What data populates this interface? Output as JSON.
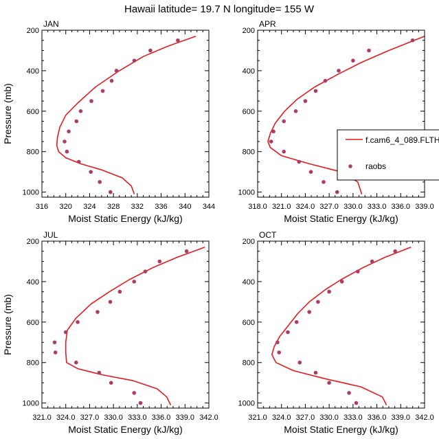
{
  "title": "Hawaii  latitude= 19.7 N longitude= 155 W",
  "colors": {
    "model": "#e8191b",
    "obs": "#b03a66"
  },
  "legend": {
    "model": "f.cam6_4_089.FLTH",
    "obs": "raobs",
    "placement": "right of APR panel"
  },
  "chart_data": [
    {
      "type": "line",
      "panel": "JAN",
      "title": "JAN",
      "xlabel": "Moist Static Energy (kJ/kg)",
      "ylabel": "Pressure (mb)",
      "xlim": [
        316,
        344
      ],
      "ylim": [
        1025,
        200
      ],
      "xticks": [
        "316",
        "320",
        "324",
        "328",
        "332",
        "336",
        "340",
        "344"
      ],
      "yticks": [
        "200",
        "400",
        "600",
        "800",
        "1000"
      ],
      "series": [
        {
          "name": "f.cam6_4_089.FLTH",
          "kind": "line",
          "x": [
            341.8,
            337,
            333,
            329,
            325,
            322,
            320,
            319,
            318.6,
            318.5,
            318.8,
            320,
            322.5,
            326,
            329.5,
            331,
            331.5
          ],
          "y": [
            230,
            280,
            330,
            400,
            480,
            560,
            620,
            680,
            730,
            770,
            800,
            830,
            860,
            890,
            930,
            970,
            1010
          ]
        },
        {
          "name": "raobs",
          "kind": "scatter",
          "x": [
            338.8,
            334.2,
            331.5,
            328.5,
            327.7,
            326.2,
            324.3,
            322.5,
            321.8,
            320.5,
            319.8,
            320.2,
            322.2,
            324.2,
            325.7,
            327.5
          ],
          "y": [
            250,
            300,
            350,
            400,
            450,
            500,
            550,
            600,
            650,
            700,
            750,
            800,
            850,
            900,
            950,
            1000
          ]
        }
      ]
    },
    {
      "type": "line",
      "panel": "APR",
      "title": "APR",
      "xlabel": "Moist Static Energy (kJ/kg)",
      "ylabel": "",
      "xlim": [
        318.0,
        339.0
      ],
      "ylim": [
        1025,
        200
      ],
      "xticks": [
        "318.0",
        "321.0",
        "324.0",
        "327.0",
        "330.0",
        "333.0",
        "336.0",
        "339.0"
      ],
      "yticks": [
        "200",
        "400",
        "600",
        "800",
        "1000"
      ],
      "series": [
        {
          "name": "f.cam6_4_089.FLTH",
          "kind": "line",
          "x": [
            339.0,
            334.5,
            331,
            328,
            325.2,
            323,
            321.4,
            320.2,
            319.6,
            319.3,
            319.6,
            321,
            324.5,
            328.5,
            330.6,
            331.1
          ],
          "y": [
            230,
            300,
            360,
            420,
            480,
            540,
            600,
            660,
            710,
            750,
            780,
            820,
            860,
            900,
            950,
            1010
          ]
        },
        {
          "name": "raobs",
          "kind": "scatter",
          "x": [
            337.5,
            332,
            330,
            328.2,
            326.5,
            325.3,
            324,
            322.8,
            321.3,
            320.0,
            319.7,
            321.3,
            323.2,
            324.7,
            326.3,
            328.0
          ],
          "y": [
            250,
            300,
            350,
            400,
            450,
            500,
            550,
            600,
            650,
            700,
            750,
            800,
            850,
            900,
            950,
            1000
          ]
        }
      ]
    },
    {
      "type": "line",
      "panel": "JUL",
      "title": "JUL",
      "xlabel": "Moist Static Energy (kJ/kg)",
      "ylabel": "Pressure (mb)",
      "xlim": [
        321.0,
        342.0
      ],
      "ylim": [
        1025,
        200
      ],
      "xticks": [
        "321.0",
        "324.0",
        "327.0",
        "330.0",
        "333.0",
        "336.0",
        "339.0",
        "342.0"
      ],
      "yticks": [
        "200",
        "400",
        "600",
        "800",
        "1000"
      ],
      "series": [
        {
          "name": "f.cam6_4_089.FLTH",
          "kind": "line",
          "x": [
            341.5,
            338,
            335,
            332,
            329.5,
            327.2,
            325.3,
            324.2,
            324.0,
            324.0,
            324.1,
            325.5,
            328.5,
            332.5,
            335.5,
            336.7,
            337.2
          ],
          "y": [
            230,
            280,
            330,
            390,
            450,
            510,
            580,
            640,
            700,
            750,
            800,
            830,
            860,
            890,
            930,
            970,
            1010
          ]
        },
        {
          "name": "raobs",
          "kind": "scatter",
          "x": [
            339.2,
            335.8,
            334.0,
            332.6,
            330.8,
            329.6,
            328.0,
            325.5,
            324.0,
            322.6,
            322.7,
            325.3,
            328.2,
            329.7,
            332.6,
            333.4
          ],
          "y": [
            250,
            300,
            350,
            400,
            450,
            500,
            550,
            600,
            650,
            700,
            750,
            800,
            850,
            900,
            950,
            1000
          ]
        }
      ]
    },
    {
      "type": "line",
      "panel": "OCT",
      "title": "OCT",
      "xlabel": "Moist Static Energy (kJ/kg)",
      "ylabel": "",
      "xlim": [
        321.0,
        342.0
      ],
      "ylim": [
        1025,
        200
      ],
      "xticks": [
        "321.0",
        "324.0",
        "327.0",
        "330.0",
        "333.0",
        "336.0",
        "339.0",
        "342.0"
      ],
      "yticks": [
        "200",
        "400",
        "600",
        "800",
        "1000"
      ],
      "series": [
        {
          "name": "f.cam6_4_089.FLTH",
          "kind": "line",
          "x": [
            340.3,
            337,
            334.3,
            331.5,
            329.5,
            327.5,
            326,
            324.8,
            323.8,
            323.1,
            322.8,
            323.3,
            325.5,
            329.5,
            334,
            336.7,
            337.2
          ],
          "y": [
            230,
            280,
            330,
            390,
            440,
            500,
            560,
            620,
            670,
            720,
            760,
            800,
            840,
            880,
            920,
            970,
            1010
          ]
        },
        {
          "name": "raobs",
          "kind": "scatter",
          "x": [
            338.3,
            335.4,
            333.6,
            331.6,
            330.0,
            328.6,
            327.5,
            325.9,
            324.8,
            323.5,
            323.7,
            326.3,
            328.3,
            330.0,
            332.5,
            333.4
          ],
          "y": [
            250,
            300,
            350,
            400,
            450,
            500,
            550,
            600,
            650,
            700,
            750,
            800,
            850,
            900,
            950,
            1000
          ]
        }
      ]
    }
  ]
}
